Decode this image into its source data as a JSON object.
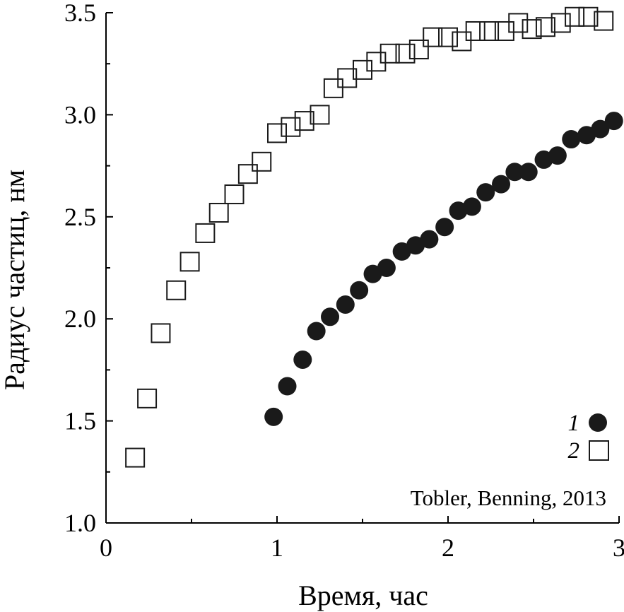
{
  "chart_data": {
    "type": "scatter",
    "xlabel": "Время, час",
    "ylabel": "Радиус частиц, нм",
    "xlim": [
      0,
      3
    ],
    "ylim": [
      1.0,
      3.5
    ],
    "x_ticks": [
      "0",
      "1",
      "2",
      "3"
    ],
    "y_ticks": [
      "1.0",
      "1.5",
      "2.0",
      "2.5",
      "3.0",
      "3.5"
    ],
    "annotation": "Tobler, Benning, 2013",
    "grid": false,
    "legend_position": "bottom-right",
    "series": [
      {
        "name": "1",
        "marker": "filled-circle",
        "color": "#1a1a1a",
        "x": [
          0.98,
          1.06,
          1.15,
          1.23,
          1.31,
          1.4,
          1.48,
          1.56,
          1.64,
          1.73,
          1.81,
          1.89,
          1.98,
          2.06,
          2.14,
          2.22,
          2.31,
          2.39,
          2.47,
          2.56,
          2.64,
          2.72,
          2.81,
          2.89,
          2.97
        ],
        "y": [
          1.52,
          1.67,
          1.8,
          1.94,
          2.01,
          2.07,
          2.14,
          2.22,
          2.25,
          2.33,
          2.36,
          2.39,
          2.45,
          2.53,
          2.55,
          2.62,
          2.66,
          2.72,
          2.72,
          2.78,
          2.8,
          2.88,
          2.9,
          2.93,
          2.97
        ]
      },
      {
        "name": "2",
        "marker": "open-square",
        "color": "#1a1a1a",
        "x": [
          0.17,
          0.24,
          0.32,
          0.41,
          0.49,
          0.58,
          0.66,
          0.75,
          0.83,
          0.91,
          1.0,
          1.08,
          1.16,
          1.25,
          1.33,
          1.41,
          1.5,
          1.58,
          1.66,
          1.75,
          1.83,
          1.91,
          2.0,
          2.08,
          2.16,
          2.24,
          2.33,
          2.41,
          2.49,
          2.57,
          2.66,
          2.74,
          2.82,
          2.91
        ],
        "y": [
          1.32,
          1.61,
          1.93,
          2.14,
          2.28,
          2.42,
          2.52,
          2.61,
          2.71,
          2.77,
          2.91,
          2.94,
          2.97,
          3.0,
          3.13,
          3.18,
          3.22,
          3.26,
          3.3,
          3.3,
          3.32,
          3.38,
          3.38,
          3.36,
          3.41,
          3.41,
          3.41,
          3.45,
          3.42,
          3.43,
          3.45,
          3.48,
          3.48,
          3.46
        ]
      }
    ]
  }
}
